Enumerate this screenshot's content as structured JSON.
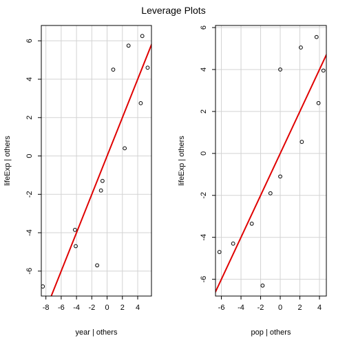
{
  "title": "Leverage Plots",
  "colors": {
    "grid": "#d3d3d3",
    "fit": "#e00000",
    "points": "#000000",
    "frame": "#000000"
  },
  "chart_data": [
    {
      "type": "scatter",
      "xlabel": "year | others",
      "ylabel": "lifeExp | others",
      "xlim": [
        -8.6,
        5.8
      ],
      "ylim": [
        -7.3,
        6.8
      ],
      "xticks": [
        -8,
        -6,
        -4,
        -2,
        0,
        2,
        4
      ],
      "yticks": [
        -6,
        -4,
        -2,
        0,
        2,
        4,
        6
      ],
      "grid": true,
      "points": [
        {
          "x": -8.4,
          "y": -6.8
        },
        {
          "x": -4.2,
          "y": -3.85
        },
        {
          "x": -4.1,
          "y": -4.7
        },
        {
          "x": -1.3,
          "y": -5.7
        },
        {
          "x": -0.8,
          "y": -1.8
        },
        {
          "x": -0.6,
          "y": -1.3
        },
        {
          "x": 0.8,
          "y": 4.5
        },
        {
          "x": 2.3,
          "y": 0.4
        },
        {
          "x": 2.8,
          "y": 5.75
        },
        {
          "x": 4.4,
          "y": 2.75
        },
        {
          "x": 4.6,
          "y": 6.25
        },
        {
          "x": 5.3,
          "y": 4.6
        }
      ],
      "fit_line": {
        "slope": 1.0,
        "intercept": 0.0
      }
    },
    {
      "type": "scatter",
      "xlabel": "pop | others",
      "ylabel": "lifeExp | others",
      "xlim": [
        -6.6,
        4.7
      ],
      "ylim": [
        -6.8,
        6.1
      ],
      "xticks": [
        -6,
        -4,
        -2,
        0,
        2,
        4
      ],
      "yticks": [
        -6,
        -4,
        -2,
        0,
        2,
        4,
        6
      ],
      "grid": true,
      "points": [
        {
          "x": -6.2,
          "y": -4.7
        },
        {
          "x": -4.8,
          "y": -4.3
        },
        {
          "x": -2.9,
          "y": -3.35
        },
        {
          "x": -1.8,
          "y": -6.3
        },
        {
          "x": -1.0,
          "y": -1.9
        },
        {
          "x": 0.0,
          "y": -1.1
        },
        {
          "x": 0.0,
          "y": 4.0
        },
        {
          "x": 2.2,
          "y": 0.55
        },
        {
          "x": 2.1,
          "y": 5.05
        },
        {
          "x": 3.7,
          "y": 5.55
        },
        {
          "x": 3.9,
          "y": 2.4
        },
        {
          "x": 4.4,
          "y": 3.95
        }
      ],
      "fit_line": {
        "slope": 1.0,
        "intercept": 0.0
      }
    }
  ]
}
